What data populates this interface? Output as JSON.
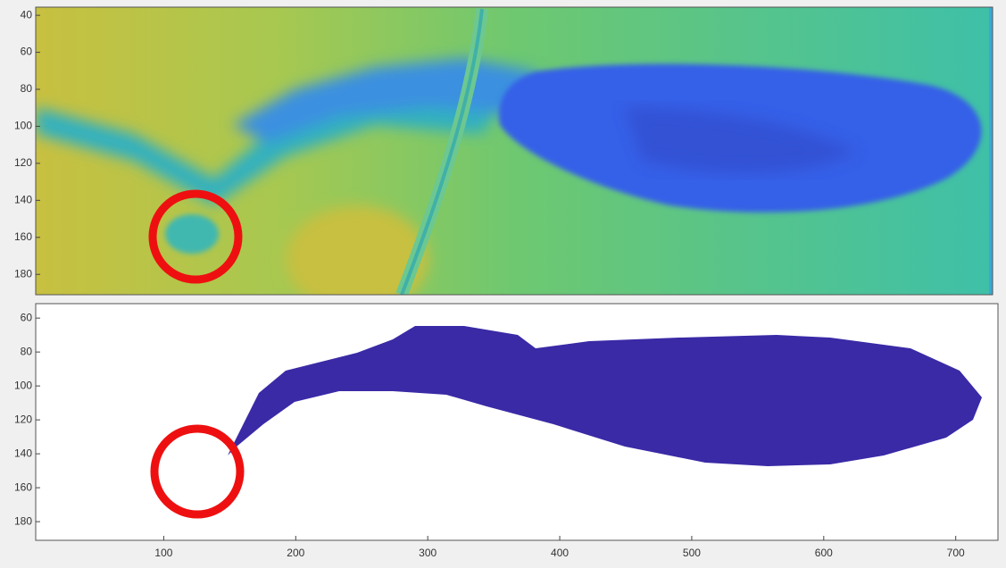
{
  "chart_data": [
    {
      "type": "image",
      "xlim": [
        3,
        732
      ],
      "ylim": [
        35.6,
        191
      ],
      "yticks": [
        40,
        60,
        80,
        100,
        120,
        140,
        160,
        180
      ]
    },
    {
      "type": "image",
      "xlim": [
        3,
        732
      ],
      "ylim": [
        51.5,
        191
      ],
      "yticks": [
        60,
        80,
        100,
        120,
        140,
        160,
        180
      ],
      "xticks": [
        100,
        200,
        300,
        400,
        500,
        600,
        700
      ]
    }
  ]
}
